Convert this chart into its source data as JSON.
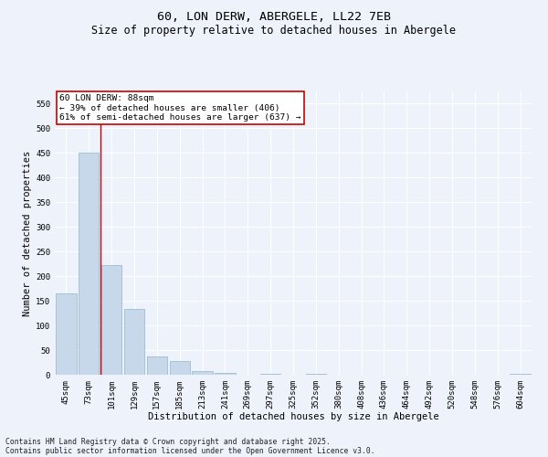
{
  "title1": "60, LON DERW, ABERGELE, LL22 7EB",
  "title2": "Size of property relative to detached houses in Abergele",
  "xlabel": "Distribution of detached houses by size in Abergele",
  "ylabel": "Number of detached properties",
  "categories": [
    "45sqm",
    "73sqm",
    "101sqm",
    "129sqm",
    "157sqm",
    "185sqm",
    "213sqm",
    "241sqm",
    "269sqm",
    "297sqm",
    "325sqm",
    "352sqm",
    "380sqm",
    "408sqm",
    "436sqm",
    "464sqm",
    "492sqm",
    "520sqm",
    "548sqm",
    "576sqm",
    "604sqm"
  ],
  "values": [
    165,
    450,
    223,
    134,
    37,
    27,
    8,
    4,
    0,
    2,
    0,
    2,
    0,
    0,
    0,
    0,
    0,
    0,
    0,
    0,
    2
  ],
  "bar_color": "#c8d8eb",
  "bar_edge_color": "#92b4cc",
  "red_line_x": 1.5,
  "annotation_text": "60 LON DERW: 88sqm\n← 39% of detached houses are smaller (406)\n61% of semi-detached houses are larger (637) →",
  "annotation_box_color": "#ffffff",
  "annotation_box_edge": "#cc0000",
  "ylim": [
    0,
    575
  ],
  "yticks": [
    0,
    50,
    100,
    150,
    200,
    250,
    300,
    350,
    400,
    450,
    500,
    550
  ],
  "background_color": "#eef2fb",
  "grid_color": "#ffffff",
  "footer1": "Contains HM Land Registry data © Crown copyright and database right 2025.",
  "footer2": "Contains public sector information licensed under the Open Government Licence v3.0.",
  "title_fontsize": 9.5,
  "subtitle_fontsize": 8.5,
  "axis_label_fontsize": 7.5,
  "tick_fontsize": 6.5,
  "annotation_fontsize": 6.8,
  "footer_fontsize": 5.8
}
